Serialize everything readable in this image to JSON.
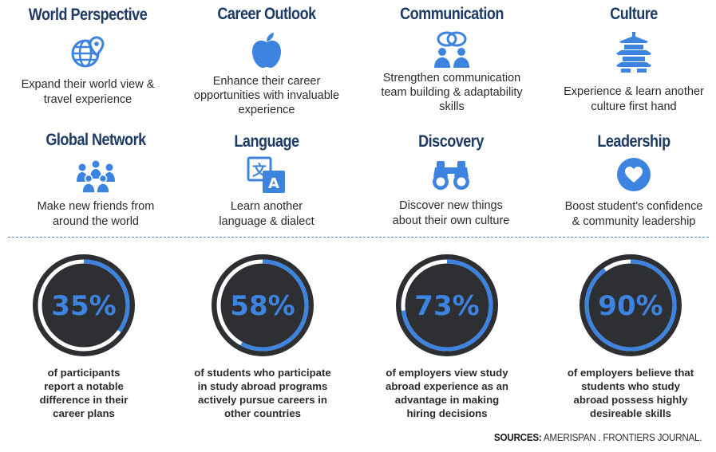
{
  "colors": {
    "accent_blue": "#3d83e0",
    "title_navy": "#1e3a66",
    "ring_dark": "#2d2f33",
    "ring_track": "#ffffff"
  },
  "benefits": [
    {
      "title": "World Perspective",
      "icon": "globe-location-icon",
      "description_lines": [
        "Expand their world view &",
        "travel experience"
      ]
    },
    {
      "title": "Career Outlook",
      "icon": "apple-icon",
      "description_lines": [
        "Enhance their career",
        "opportunities with invaluable",
        "experience"
      ]
    },
    {
      "title": "Communication",
      "icon": "people-speech-icon",
      "description_lines": [
        "Strengthen communication",
        "team building & adaptability",
        "skills"
      ]
    },
    {
      "title": "Culture",
      "icon": "pagoda-icon",
      "description_lines": [
        "Experience & learn another",
        "culture first hand"
      ]
    },
    {
      "title": "Global Network",
      "icon": "group-people-icon",
      "description_lines": [
        "Make new friends from",
        "around the world"
      ]
    },
    {
      "title": "Language",
      "icon": "translate-icon",
      "description_lines": [
        "Learn another",
        "language & dialect"
      ]
    },
    {
      "title": "Discovery",
      "icon": "binoculars-icon",
      "description_lines": [
        "Discover new things",
        "about their own culture"
      ]
    },
    {
      "title": "Leadership",
      "icon": "heart-badge-icon",
      "description_lines": [
        "Boost student's confidence",
        "& community leadership"
      ]
    }
  ],
  "stats": [
    {
      "value": "35%",
      "fraction": 0.35,
      "description_lines": [
        "of participants",
        "report a notable",
        "difference in their",
        "career plans"
      ]
    },
    {
      "value": "58%",
      "fraction": 0.58,
      "description_lines": [
        "of students who participate",
        "in study abroad programs",
        "actively pursue careers in",
        "other countries"
      ]
    },
    {
      "value": "73%",
      "fraction": 0.73,
      "description_lines": [
        "of employers view study",
        "abroad experience as an",
        "advantage in making",
        "hiring decisions"
      ]
    },
    {
      "value": "90%",
      "fraction": 0.9,
      "description_lines": [
        "of employers believe that",
        "students who study",
        "abroad possess highly",
        "desireable skills"
      ]
    }
  ],
  "sources": {
    "label": "SOURCES:",
    "text": " AMERISPAN . FRONTIERS JOURNAL."
  }
}
